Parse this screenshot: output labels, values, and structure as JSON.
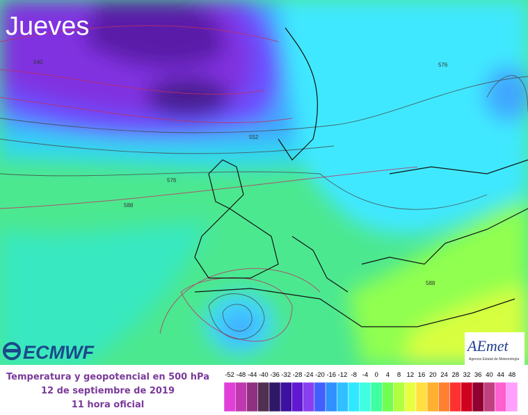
{
  "map": {
    "title": "Jueves",
    "contour_labels": [
      "540",
      "552",
      "576",
      "588",
      "576",
      "588"
    ]
  },
  "logos": {
    "ecmwf": "ECMWF",
    "aemet": "AEmet",
    "aemet_subtitle": "Agencia Estatal de Meteorología"
  },
  "caption": {
    "lines": [
      "Temperatura y geopotencial en 500 hPa",
      "12 de septiembre de 2019",
      "11 hora oficial"
    ]
  },
  "legend": {
    "values": [
      -52,
      -48,
      -44,
      -40,
      -36,
      -32,
      -28,
      -24,
      -20,
      -16,
      -12,
      -8,
      -4,
      0,
      4,
      8,
      12,
      16,
      20,
      24,
      28,
      32,
      36,
      40,
      44,
      48
    ],
    "colors": [
      "#e040d8",
      "#c038b0",
      "#903080",
      "#503050",
      "#301868",
      "#3c10a0",
      "#6018d0",
      "#8840f0",
      "#4060ff",
      "#3090ff",
      "#30c0ff",
      "#30e8ff",
      "#40ffe0",
      "#40ffa0",
      "#70ff50",
      "#b0ff40",
      "#e8ff40",
      "#ffe040",
      "#ffb030",
      "#ff8030",
      "#ff3030",
      "#d00020",
      "#900030",
      "#c04080",
      "#ff60d0",
      "#ffa0ff"
    ]
  }
}
